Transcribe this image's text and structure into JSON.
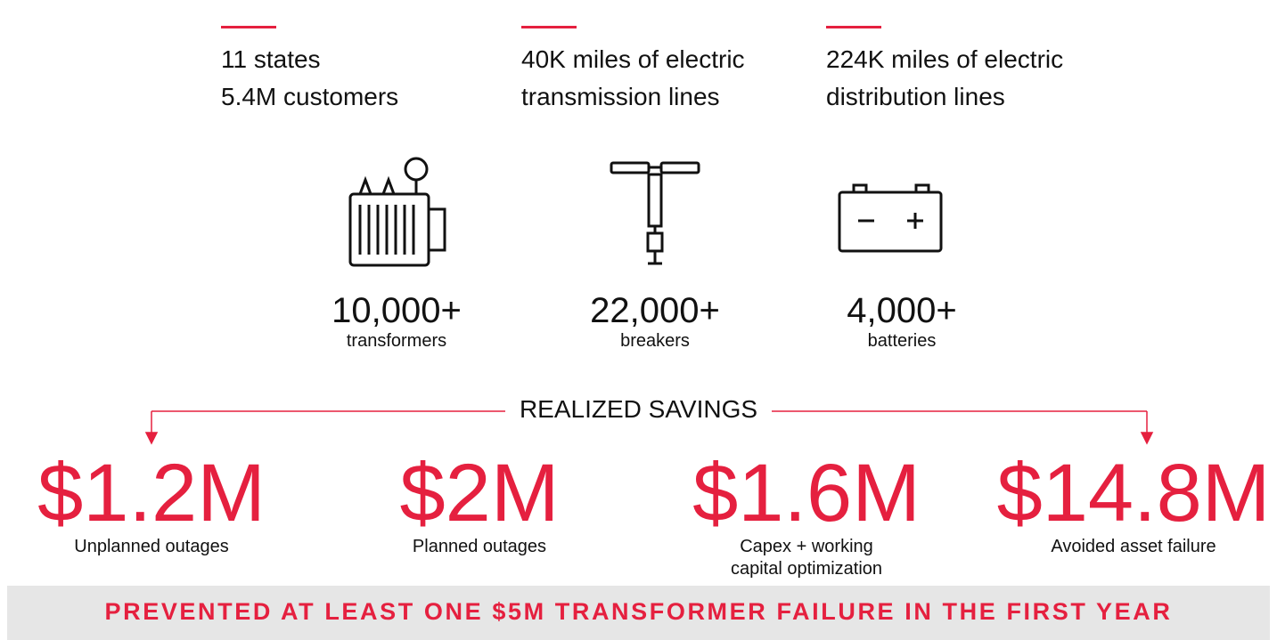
{
  "stats": [
    {
      "lines": [
        "11 states",
        "5.4M customers"
      ]
    },
    {
      "lines": [
        "40K miles of electric",
        "transmission lines"
      ]
    },
    {
      "lines": [
        "224K miles of electric",
        "distribution lines"
      ]
    }
  ],
  "assets": [
    {
      "value": "10,000+",
      "label": "transformers"
    },
    {
      "value": "22,000+",
      "label": "breakers"
    },
    {
      "value": "4,000+",
      "label": "batteries"
    }
  ],
  "savings_title": "REALIZED SAVINGS",
  "savings": [
    {
      "value": "$1.2M",
      "label": [
        "Unplanned outages"
      ]
    },
    {
      "value": "$2M",
      "label": [
        "Planned outages"
      ]
    },
    {
      "value": "$1.6M",
      "label": [
        "Capex + working",
        "capital optimization"
      ]
    },
    {
      "value": "$14.8M",
      "label": [
        "Avoided asset failure"
      ]
    }
  ],
  "banner": "PREVENTED AT LEAST ONE $5M TRANSFORMER FAILURE IN THE FIRST YEAR"
}
